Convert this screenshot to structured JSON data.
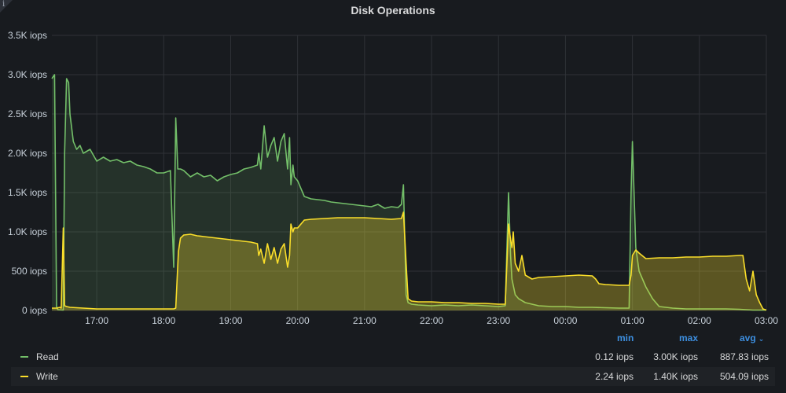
{
  "panel": {
    "title": "Disk Operations",
    "info_icon": "i"
  },
  "chart_data": {
    "type": "area",
    "title": "Disk Operations",
    "unit": "iops",
    "ylim": [
      0,
      3500
    ],
    "y_ticks": [
      "0 iops",
      "500 iops",
      "1.0K iops",
      "1.5K iops",
      "2.0K iops",
      "2.5K iops",
      "3.0K iops",
      "3.5K iops"
    ],
    "y_tick_values": [
      0,
      500,
      1000,
      1500,
      2000,
      2500,
      3000,
      3500
    ],
    "x_range_hours": [
      16.33,
      27.0
    ],
    "x_ticks": [
      "17:00",
      "18:00",
      "19:00",
      "20:00",
      "21:00",
      "22:00",
      "23:00",
      "00:00",
      "01:00",
      "02:00",
      "03:00"
    ],
    "x_tick_values": [
      17,
      18,
      19,
      20,
      21,
      22,
      23,
      24,
      25,
      26,
      27
    ],
    "grid": true,
    "series": [
      {
        "name": "Read",
        "color": "#73bf69",
        "x": [
          16.33,
          16.37,
          16.4,
          16.42,
          16.5,
          16.52,
          16.55,
          16.58,
          16.6,
          16.65,
          16.7,
          16.75,
          16.8,
          16.9,
          17.0,
          17.1,
          17.2,
          17.3,
          17.4,
          17.5,
          17.6,
          17.7,
          17.8,
          17.9,
          18.0,
          18.1,
          18.15,
          18.18,
          18.21,
          18.25,
          18.3,
          18.4,
          18.5,
          18.6,
          18.7,
          18.8,
          18.9,
          19.0,
          19.1,
          19.2,
          19.3,
          19.4,
          19.42,
          19.45,
          19.5,
          19.55,
          19.6,
          19.65,
          19.7,
          19.75,
          19.8,
          19.85,
          19.88,
          19.9,
          19.93,
          19.95,
          20.0,
          20.1,
          20.2,
          20.3,
          20.4,
          20.5,
          20.6,
          20.7,
          20.8,
          20.9,
          21.0,
          21.1,
          21.2,
          21.3,
          21.4,
          21.5,
          21.55,
          21.58,
          21.62,
          21.65,
          21.7,
          21.8,
          22.0,
          22.2,
          22.4,
          22.6,
          22.8,
          23.0,
          23.1,
          23.15,
          23.18,
          23.2,
          23.25,
          23.3,
          23.4,
          23.5,
          23.6,
          23.8,
          24.0,
          24.2,
          24.4,
          24.6,
          24.8,
          24.95,
          24.98,
          25.0,
          25.05,
          25.1,
          25.2,
          25.3,
          25.4,
          25.6,
          25.8,
          26.0,
          26.2,
          26.4,
          26.6,
          26.7,
          26.8,
          26.9,
          27.0
        ],
        "y": [
          2950,
          3000,
          50,
          10,
          5,
          2000,
          2950,
          2900,
          2500,
          2150,
          2050,
          2100,
          2000,
          2050,
          1900,
          1950,
          1900,
          1920,
          1880,
          1900,
          1850,
          1830,
          1800,
          1750,
          1750,
          1780,
          550,
          2450,
          1800,
          1800,
          1780,
          1700,
          1750,
          1700,
          1720,
          1650,
          1700,
          1730,
          1750,
          1800,
          1820,
          1850,
          2000,
          1800,
          2350,
          1950,
          2100,
          2200,
          1900,
          2150,
          2250,
          1800,
          2200,
          1600,
          1850,
          1700,
          1650,
          1450,
          1420,
          1410,
          1400,
          1380,
          1370,
          1360,
          1350,
          1340,
          1330,
          1320,
          1350,
          1300,
          1320,
          1310,
          1350,
          1600,
          200,
          100,
          80,
          70,
          60,
          70,
          60,
          70,
          60,
          50,
          60,
          1500,
          700,
          400,
          200,
          150,
          100,
          80,
          60,
          50,
          50,
          40,
          40,
          35,
          30,
          30,
          1500,
          2150,
          800,
          500,
          300,
          150,
          50,
          30,
          20,
          20,
          20,
          20,
          15,
          10,
          5,
          5,
          5
        ]
      },
      {
        "name": "Write",
        "color": "#fade2a",
        "x": [
          16.33,
          16.4,
          16.45,
          16.47,
          16.5,
          16.52,
          16.55,
          16.6,
          16.7,
          16.8,
          17.0,
          17.5,
          18.0,
          18.15,
          18.18,
          18.22,
          18.25,
          18.3,
          18.4,
          18.5,
          18.6,
          18.7,
          18.8,
          18.9,
          19.0,
          19.1,
          19.2,
          19.3,
          19.4,
          19.42,
          19.45,
          19.5,
          19.55,
          19.6,
          19.65,
          19.7,
          19.75,
          19.8,
          19.85,
          19.88,
          19.9,
          19.93,
          19.95,
          20.0,
          20.1,
          20.2,
          20.4,
          20.6,
          20.8,
          21.0,
          21.2,
          21.4,
          21.55,
          21.58,
          21.62,
          21.65,
          21.7,
          21.8,
          22.0,
          22.2,
          22.4,
          22.6,
          22.8,
          23.0,
          23.1,
          23.15,
          23.18,
          23.2,
          23.22,
          23.25,
          23.3,
          23.35,
          23.4,
          23.5,
          23.6,
          23.8,
          24.0,
          24.2,
          24.4,
          24.45,
          24.5,
          24.6,
          24.8,
          24.95,
          24.98,
          25.0,
          25.05,
          25.1,
          25.2,
          25.4,
          25.6,
          25.8,
          26.0,
          26.2,
          26.4,
          26.6,
          26.65,
          26.7,
          26.75,
          26.8,
          26.85,
          26.9,
          26.95,
          27.0
        ],
        "y": [
          30,
          30,
          40,
          30,
          1050,
          60,
          50,
          40,
          35,
          30,
          20,
          20,
          20,
          20,
          30,
          750,
          920,
          960,
          970,
          950,
          940,
          930,
          920,
          910,
          900,
          890,
          880,
          870,
          850,
          700,
          780,
          600,
          850,
          650,
          800,
          600,
          780,
          850,
          550,
          700,
          1100,
          1000,
          1050,
          1050,
          1150,
          1160,
          1170,
          1180,
          1180,
          1180,
          1170,
          1160,
          1170,
          1250,
          600,
          150,
          120,
          110,
          110,
          100,
          100,
          90,
          90,
          80,
          80,
          1100,
          900,
          800,
          1000,
          600,
          500,
          700,
          450,
          400,
          420,
          430,
          440,
          450,
          440,
          400,
          340,
          330,
          320,
          320,
          450,
          700,
          770,
          730,
          660,
          670,
          670,
          680,
          680,
          690,
          690,
          700,
          700,
          400,
          250,
          500,
          200,
          100,
          20,
          5
        ]
      }
    ]
  },
  "legend": {
    "headers": {
      "min": "min",
      "max": "max",
      "avg": "avg",
      "sort_icon": "⌄"
    },
    "rows": [
      {
        "name": "Read",
        "color": "#73bf69",
        "min": "0.12 iops",
        "max": "3.00K iops",
        "avg": "887.83 iops"
      },
      {
        "name": "Write",
        "color": "#fade2a",
        "min": "2.24 iops",
        "max": "1.40K iops",
        "avg": "504.09 iops"
      }
    ]
  }
}
